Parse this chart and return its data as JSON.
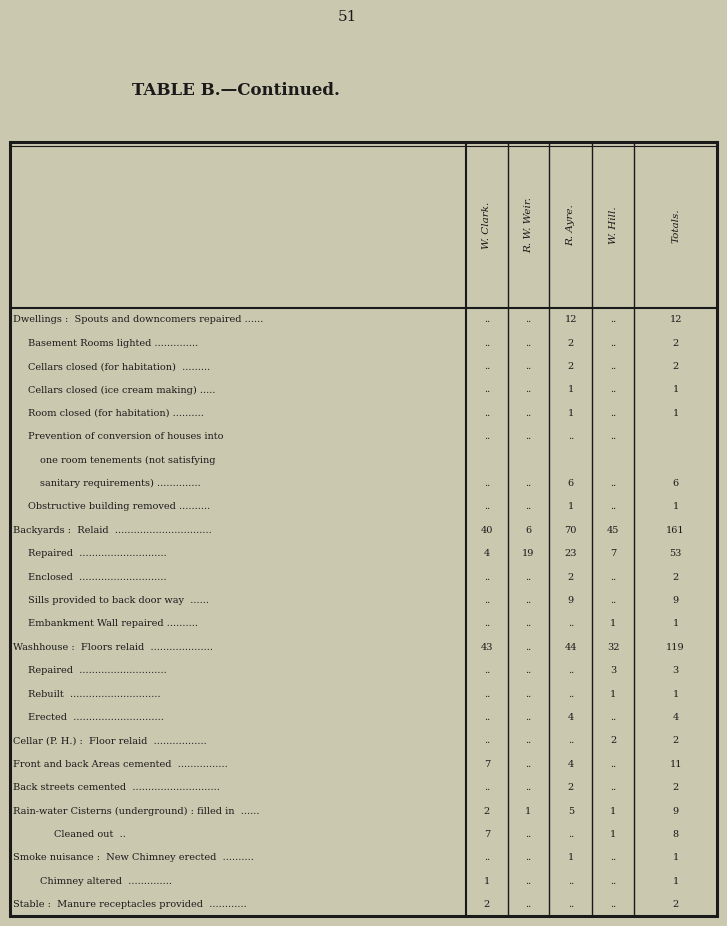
{
  "page_number": "51",
  "title": "TABLE B.—Continued.",
  "background_color": "#cbc8b0",
  "text_color": "#1a1a1a",
  "col_headers": [
    "W. Clark.",
    "R. W. Weir.",
    "R. Ayre.",
    "W. Hill.",
    "Totals."
  ],
  "rows": [
    {
      "label": "Dwellings :  Spouts and downcomers repaired ......",
      "indent": 0,
      "values": [
        "..",
        "..",
        "12",
        "..",
        "12"
      ]
    },
    {
      "label": "Basement Rooms lighted ..............",
      "indent": 1,
      "values": [
        "..",
        "..",
        "2",
        "..",
        "2"
      ]
    },
    {
      "label": "Cellars closed (for habitation)  .........",
      "indent": 1,
      "values": [
        "..",
        "..",
        "2",
        "..",
        "2"
      ]
    },
    {
      "label": "Cellars closed (ice cream making) .....",
      "indent": 1,
      "values": [
        "..",
        "..",
        "1",
        "..",
        "1"
      ]
    },
    {
      "label": "Room closed (for habitation) ..........",
      "indent": 1,
      "values": [
        "..",
        "..",
        "1",
        "..",
        "1"
      ]
    },
    {
      "label": "Prevention of conversion of houses into",
      "indent": 1,
      "values": [
        "..",
        "..",
        "..",
        "..",
        ""
      ]
    },
    {
      "label": "one room tenements (not satisfying",
      "indent": 2,
      "values": [
        "",
        "",
        "",
        "",
        ""
      ]
    },
    {
      "label": "sanitary requirements) ..............",
      "indent": 2,
      "values": [
        "..",
        "..",
        "6",
        "..",
        "6"
      ]
    },
    {
      "label": "Obstructive building removed ..........",
      "indent": 1,
      "values": [
        "..",
        "..",
        "1",
        "..",
        "1"
      ]
    },
    {
      "label": "Backyards :  Relaid  ...............................",
      "indent": 0,
      "values": [
        "40",
        "6",
        "70",
        "45",
        "161"
      ]
    },
    {
      "label": "Repaired  ............................",
      "indent": 1,
      "values": [
        "4",
        "19",
        "23",
        "7",
        "53"
      ]
    },
    {
      "label": "Enclosed  ............................",
      "indent": 1,
      "values": [
        "..",
        "..",
        "2",
        "..",
        "2"
      ]
    },
    {
      "label": "Sills provided to back door way  ......",
      "indent": 1,
      "values": [
        "..",
        "..",
        "9",
        "..",
        "9"
      ]
    },
    {
      "label": "Embankment Wall repaired ..........",
      "indent": 1,
      "values": [
        "..",
        "..",
        "..",
        "1",
        "1"
      ]
    },
    {
      "label": "Washhouse :  Floors relaid  ....................",
      "indent": 0,
      "values": [
        "43",
        "..",
        "44",
        "32",
        "119"
      ]
    },
    {
      "label": "Repaired  ............................",
      "indent": 1,
      "values": [
        "..",
        "..",
        "..",
        "3",
        "3"
      ]
    },
    {
      "label": "Rebuilt  .............................",
      "indent": 1,
      "values": [
        "..",
        "..",
        "..",
        "1",
        "1"
      ]
    },
    {
      "label": "Erected  .............................",
      "indent": 1,
      "values": [
        "..",
        "..",
        "4",
        "..",
        "4"
      ]
    },
    {
      "label": "Cellar (P. H.) :  Floor relaid  .................",
      "indent": 0,
      "values": [
        "..",
        "..",
        "..",
        "2",
        "2"
      ]
    },
    {
      "label": "Front and back Areas cemented  ................",
      "indent": 0,
      "values": [
        "7",
        "..",
        "4",
        "..",
        "11"
      ]
    },
    {
      "label": "Back streets cemented  ............................",
      "indent": 0,
      "values": [
        "..",
        "..",
        "2",
        "..",
        "2"
      ]
    },
    {
      "label": "Rain-water Cisterns (underground) : filled in  ......",
      "indent": 0,
      "values": [
        "2",
        "1",
        "5",
        "1",
        "9"
      ]
    },
    {
      "label": "Cleaned out  ..",
      "indent": 3,
      "values": [
        "7",
        "..",
        "..",
        "1",
        "8"
      ]
    },
    {
      "label": "Smoke nuisance :  New Chimney erected  ..........",
      "indent": 0,
      "values": [
        "..",
        "..",
        "1",
        "..",
        "1"
      ]
    },
    {
      "label": "Chimney altered  ..............",
      "indent": 2,
      "values": [
        "1",
        "..",
        "..",
        "..",
        "1"
      ]
    },
    {
      "label": "Stable :  Manure receptacles provided  ............",
      "indent": 0,
      "values": [
        "2",
        "..",
        "..",
        "..",
        "2"
      ]
    }
  ]
}
